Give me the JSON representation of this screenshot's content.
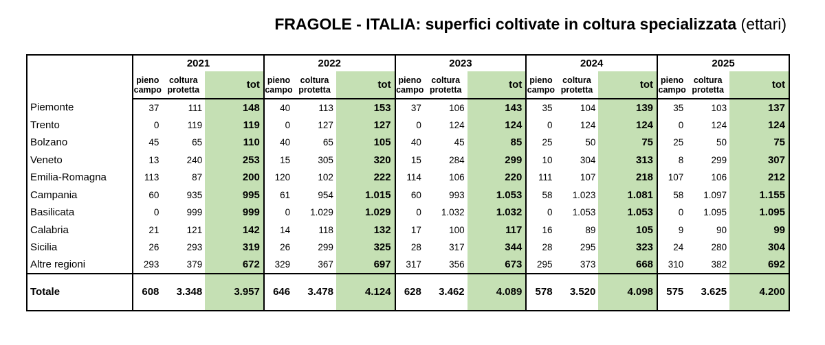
{
  "title": {
    "bold": "FRAGOLE - ITALIA: superfici coltivate in coltura specializzata",
    "normal": "(ettari)"
  },
  "headers": {
    "pieno": [
      "pieno",
      "campo"
    ],
    "coltura": [
      "coltura",
      "protetta"
    ],
    "tot": "tot"
  },
  "years": [
    "2021",
    "2022",
    "2023",
    "2024",
    "2025"
  ],
  "rows": [
    {
      "region": "Piemonte",
      "vals": [
        [
          "37",
          "111",
          "148"
        ],
        [
          "40",
          "113",
          "153"
        ],
        [
          "37",
          "106",
          "143"
        ],
        [
          "35",
          "104",
          "139"
        ],
        [
          "35",
          "103",
          "137"
        ]
      ]
    },
    {
      "region": "Trento",
      "vals": [
        [
          "0",
          "119",
          "119"
        ],
        [
          "0",
          "127",
          "127"
        ],
        [
          "0",
          "124",
          "124"
        ],
        [
          "0",
          "124",
          "124"
        ],
        [
          "0",
          "124",
          "124"
        ]
      ]
    },
    {
      "region": "Bolzano",
      "vals": [
        [
          "45",
          "65",
          "110"
        ],
        [
          "40",
          "65",
          "105"
        ],
        [
          "40",
          "45",
          "85"
        ],
        [
          "25",
          "50",
          "75"
        ],
        [
          "25",
          "50",
          "75"
        ]
      ]
    },
    {
      "region": "Veneto",
      "vals": [
        [
          "13",
          "240",
          "253"
        ],
        [
          "15",
          "305",
          "320"
        ],
        [
          "15",
          "284",
          "299"
        ],
        [
          "10",
          "304",
          "313"
        ],
        [
          "8",
          "299",
          "307"
        ]
      ]
    },
    {
      "region": "Emilia-Romagna",
      "vals": [
        [
          "113",
          "87",
          "200"
        ],
        [
          "120",
          "102",
          "222"
        ],
        [
          "114",
          "106",
          "220"
        ],
        [
          "111",
          "107",
          "218"
        ],
        [
          "107",
          "106",
          "212"
        ]
      ]
    },
    {
      "region": "Campania",
      "vals": [
        [
          "60",
          "935",
          "995"
        ],
        [
          "61",
          "954",
          "1.015"
        ],
        [
          "60",
          "993",
          "1.053"
        ],
        [
          "58",
          "1.023",
          "1.081"
        ],
        [
          "58",
          "1.097",
          "1.155"
        ]
      ]
    },
    {
      "region": "Basilicata",
      "vals": [
        [
          "0",
          "999",
          "999"
        ],
        [
          "0",
          "1.029",
          "1.029"
        ],
        [
          "0",
          "1.032",
          "1.032"
        ],
        [
          "0",
          "1.053",
          "1.053"
        ],
        [
          "0",
          "1.095",
          "1.095"
        ]
      ]
    },
    {
      "region": "Calabria",
      "vals": [
        [
          "21",
          "121",
          "142"
        ],
        [
          "14",
          "118",
          "132"
        ],
        [
          "17",
          "100",
          "117"
        ],
        [
          "16",
          "89",
          "105"
        ],
        [
          "9",
          "90",
          "99"
        ]
      ]
    },
    {
      "region": "Sicilia",
      "vals": [
        [
          "26",
          "293",
          "319"
        ],
        [
          "26",
          "299",
          "325"
        ],
        [
          "28",
          "317",
          "344"
        ],
        [
          "28",
          "295",
          "323"
        ],
        [
          "24",
          "280",
          "304"
        ]
      ]
    },
    {
      "region": "Altre regioni",
      "vals": [
        [
          "293",
          "379",
          "672"
        ],
        [
          "329",
          "367",
          "697"
        ],
        [
          "317",
          "356",
          "673"
        ],
        [
          "295",
          "373",
          "668"
        ],
        [
          "310",
          "382",
          "692"
        ]
      ]
    }
  ],
  "totale": {
    "label": "Totale",
    "vals": [
      [
        "608",
        "3.348",
        "3.957"
      ],
      [
        "646",
        "3.478",
        "4.124"
      ],
      [
        "628",
        "3.462",
        "4.089"
      ],
      [
        "578",
        "3.520",
        "4.098"
      ],
      [
        "575",
        "3.625",
        "4.200"
      ]
    ]
  }
}
